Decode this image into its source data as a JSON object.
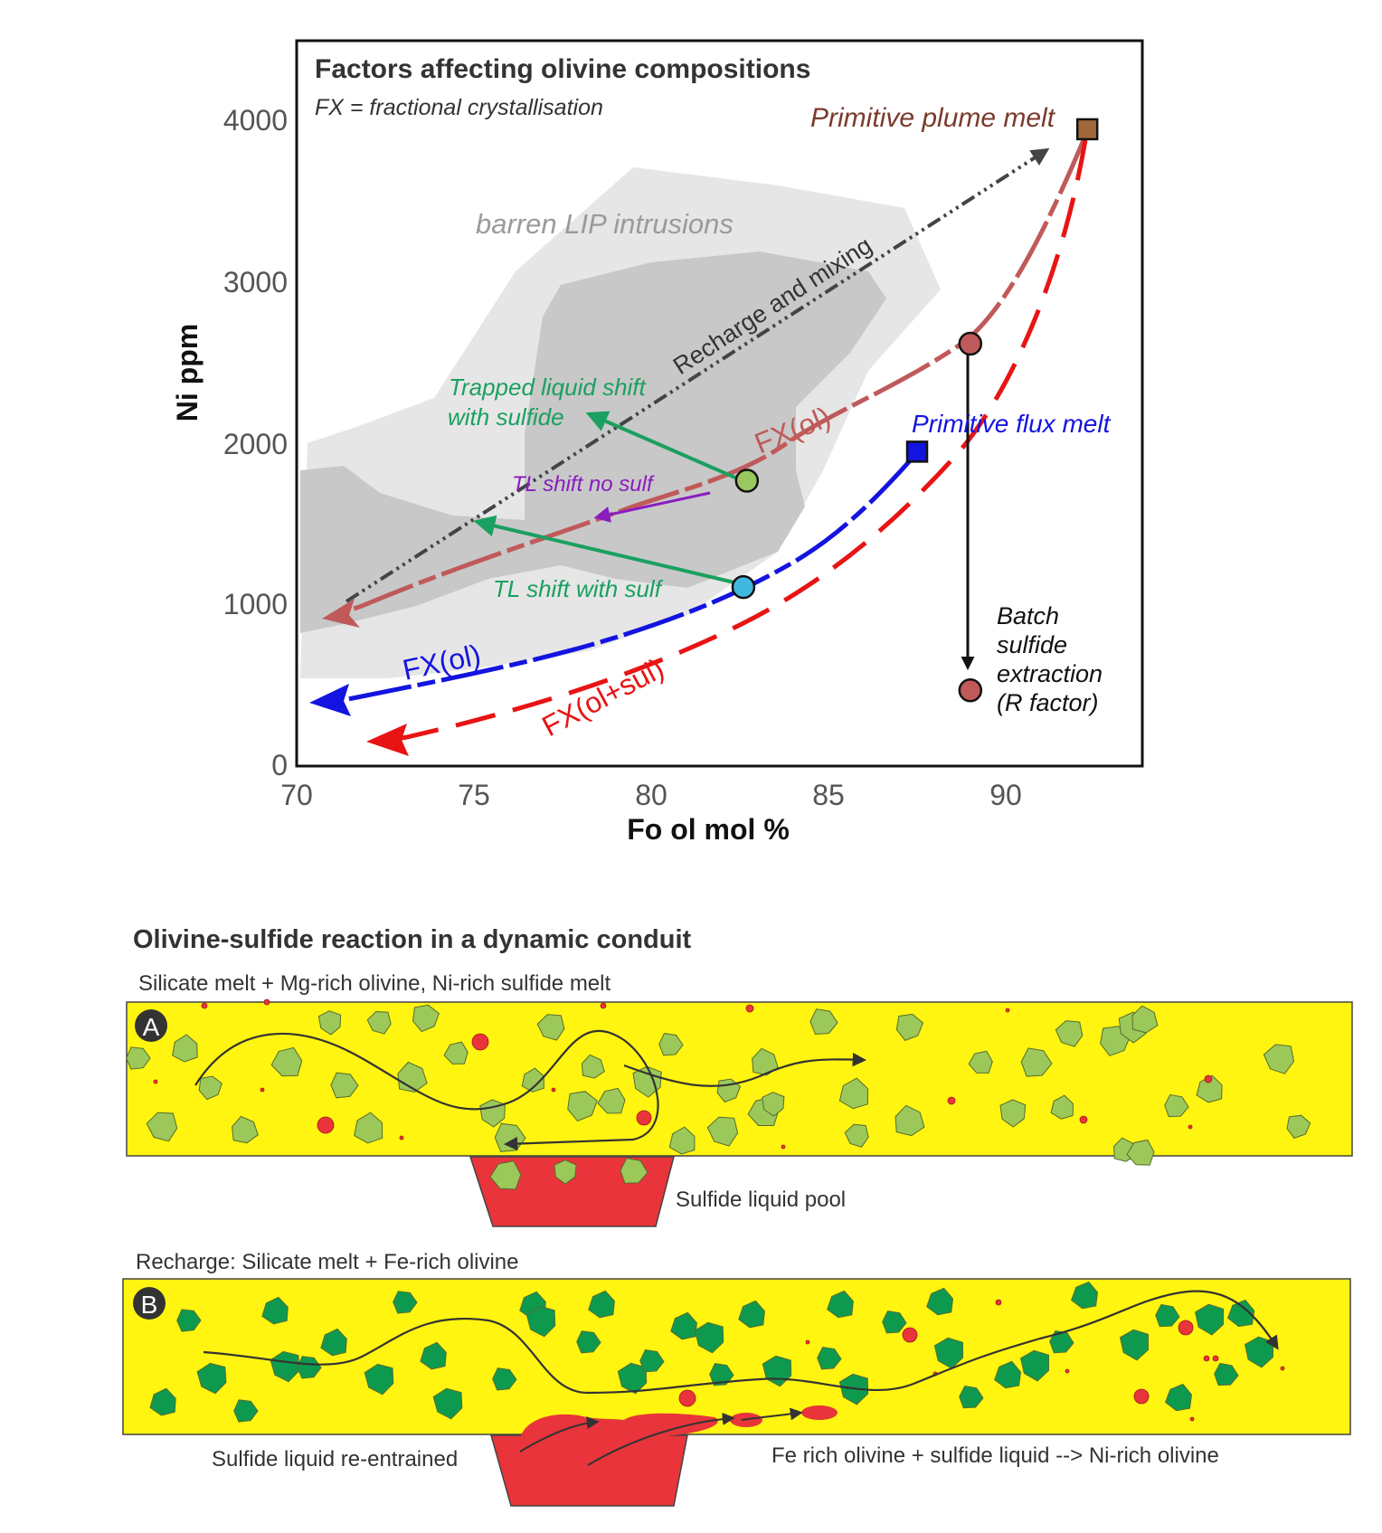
{
  "chart": {
    "title": "Factors affecting olivine compositions",
    "subtitle": "FX = fractional crystallisation",
    "xlabel": "Fo ol mol %",
    "ylabel": "Ni ppm",
    "xticks": [
      "70",
      "75",
      "80",
      "85",
      "90"
    ],
    "yticks": [
      "0",
      "1000",
      "2000",
      "3000",
      "4000"
    ],
    "field_label": "barren LIP intrusions",
    "labels": {
      "plume": "Primitive plume melt",
      "flux": "Primitive flux melt",
      "recharge": "Recharge and mixing",
      "trapped_1": "Trapped liquid shift",
      "trapped_2": "with sulfide",
      "tl_no_sulf": "TL shift no sulf",
      "tl_with_sulf": "TL shift with sulf",
      "fx_ol_upper": "FX(ol)",
      "fx_ol_lower": "FX(ol)",
      "fx_ol_sul": "FX(ol+sul)",
      "batch_1": "Batch",
      "batch_2": "sulfide",
      "batch_3": "extraction",
      "batch_4": "(R factor)"
    },
    "colors": {
      "plume_curve": "#c05a5a",
      "flux_curve": "#1414e0",
      "sulfide_curve": "#e81414",
      "recharge": "#444444",
      "green": "#1aa060",
      "purple": "#8a1cc0",
      "plume_label": "#7a3a2a",
      "field_light": "#e6e6e6",
      "field_dark": "#c8c8c8"
    }
  },
  "chart_data": {
    "type": "scatter",
    "xlim": [
      70,
      93.5
    ],
    "ylim": [
      0,
      4500
    ],
    "points": [
      {
        "name": "Primitive plume melt",
        "x": 92.3,
        "y": 3950,
        "marker": "square",
        "color": "#a0683a"
      },
      {
        "name": "Primitive flux melt",
        "x": 87.5,
        "y": 1950,
        "marker": "square",
        "color": "#1414e0"
      },
      {
        "name": "FX(ol) upper point",
        "x": 89.0,
        "y": 2620,
        "marker": "circle",
        "color": "#c05a5a"
      },
      {
        "name": "R factor endpoint",
        "x": 89.0,
        "y": 470,
        "marker": "circle",
        "color": "#c05a5a"
      },
      {
        "name": "TL upper point",
        "x": 82.7,
        "y": 1770,
        "marker": "circle",
        "color": "#9ac860"
      },
      {
        "name": "TL lower point",
        "x": 82.6,
        "y": 1110,
        "marker": "circle",
        "color": "#40b8e0"
      }
    ]
  },
  "diagram": {
    "title": "Olivine-sulfide reaction in a dynamic conduit",
    "a_caption": "Silicate melt + Mg-rich olivine, Ni-rich sulfide melt",
    "a_badge": "A",
    "a_pool": "Sulfide liquid pool",
    "b_caption": "Recharge: Silicate melt + Fe-rich olivine",
    "b_badge": "B",
    "b_left": "Sulfide liquid re-entrained",
    "b_right": "Fe rich olivine + sulfide liquid --> Ni-rich olivine",
    "colors": {
      "melt": "#fff510",
      "olivine_mg": "#9cc85a",
      "olivine_fe": "#0e9a4e",
      "sulfide": "#e8343a"
    }
  }
}
